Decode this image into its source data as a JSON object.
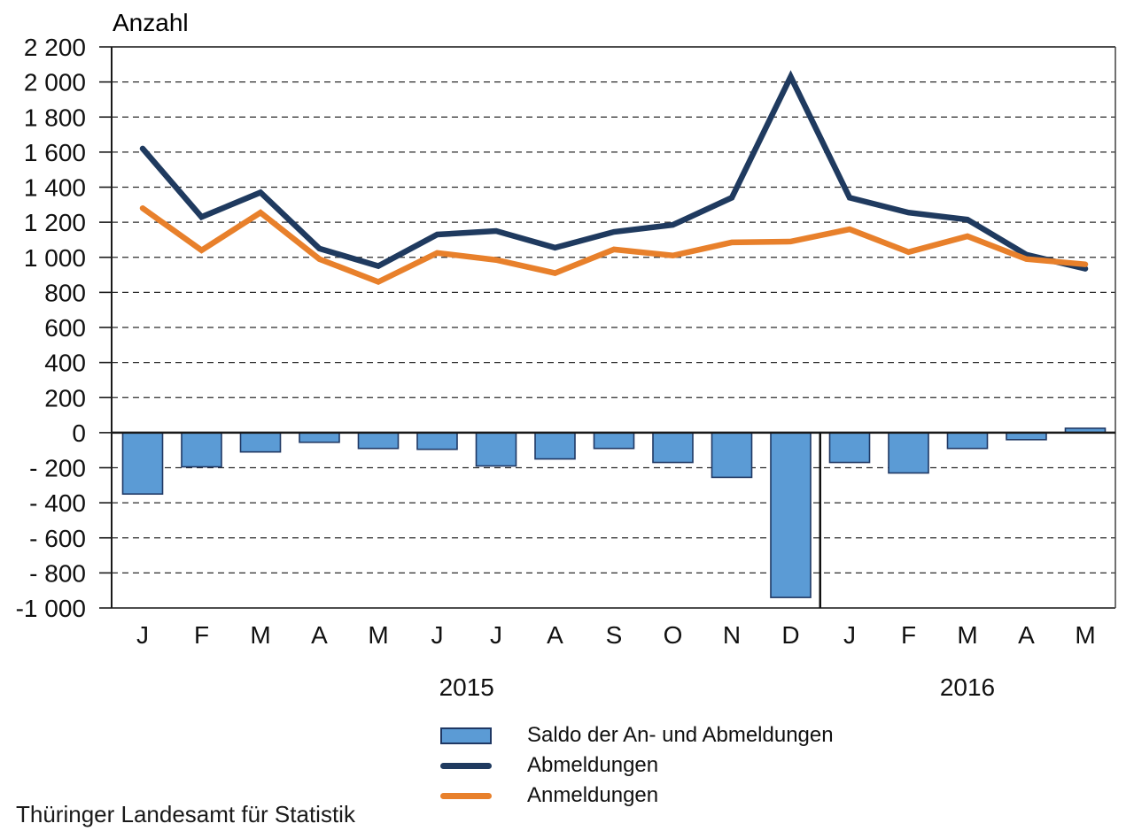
{
  "title": "Anzahl",
  "source": "Thüringer Landesamt für Statistik",
  "colors": {
    "saldo_fill": "#5B9BD5",
    "saldo_border": "#1F3864",
    "abmeldungen": "#1F3A5F",
    "anmeldungen": "#E8802B",
    "grid": "#2B2B2B",
    "frame": "#4D4D4D",
    "axis": "#1A1A1A"
  },
  "legend": {
    "items": [
      {
        "label": "Saldo der An- und Abmeldungen",
        "swatch": "bar"
      },
      {
        "label": "Abmeldungen",
        "swatch": "navy-line"
      },
      {
        "label": "Anmeldungen",
        "swatch": "orange-line"
      }
    ]
  },
  "chart_data": {
    "type": "bar",
    "subtype": "combined bar and line chart",
    "title": "Anzahl",
    "xlabel": "",
    "ylabel": "Anzahl",
    "x_categories": [
      "J",
      "F",
      "M",
      "A",
      "M",
      "J",
      "J",
      "A",
      "S",
      "O",
      "N",
      "D",
      "J",
      "F",
      "M",
      "A",
      "M"
    ],
    "year_groups": [
      {
        "label": "2015",
        "months": 12
      },
      {
        "label": "2016",
        "months": 5
      }
    ],
    "y_axis": {
      "min": -1000,
      "max": 2200,
      "step": 200,
      "tick_labels": [
        "2 200",
        "2 000",
        "1 800",
        "1 600",
        "1 400",
        "1 200",
        "1 000",
        "800",
        "600",
        "400",
        "200",
        "0",
        "- 200",
        "- 400",
        "- 600",
        "- 800",
        "-1 000"
      ]
    },
    "grid": "dashed horizontal lines every 200",
    "legend_position": "bottom",
    "series": [
      {
        "name": "Saldo der An- und Abmeldungen",
        "type": "bar",
        "values": [
          -350,
          -195,
          -110,
          -55,
          -90,
          -95,
          -190,
          -150,
          -90,
          -170,
          -255,
          -940,
          -170,
          -230,
          -90,
          -40,
          25
        ]
      },
      {
        "name": "Abmeldungen",
        "type": "line",
        "values": [
          1620,
          1230,
          1370,
          1050,
          950,
          1130,
          1150,
          1055,
          1145,
          1185,
          1340,
          2030,
          1340,
          1255,
          1215,
          1015,
          935
        ]
      },
      {
        "name": "Anmeldungen",
        "type": "line",
        "values": [
          1280,
          1040,
          1255,
          990,
          860,
          1025,
          985,
          910,
          1045,
          1010,
          1085,
          1090,
          1160,
          1030,
          1120,
          990,
          960
        ]
      }
    ],
    "annotations": [
      "vertical separator line between December 2015 and January 2016, below the zero axis"
    ]
  }
}
